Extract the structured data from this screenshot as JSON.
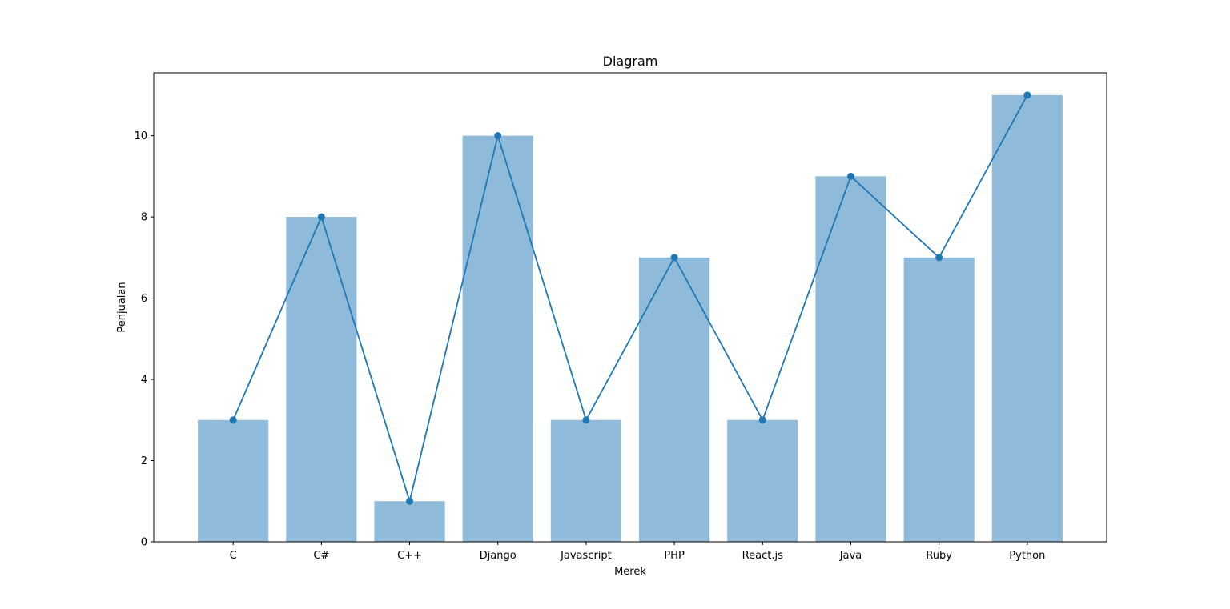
{
  "chart_data": {
    "type": "bar",
    "title": "Diagram",
    "xlabel": "Merek",
    "ylabel": "Penjualan",
    "categories": [
      "C",
      "C#",
      "C++",
      "Django",
      "Javascript",
      "PHP",
      "React.js",
      "Java",
      "Ruby",
      "Python"
    ],
    "values": [
      3,
      8,
      1,
      10,
      3,
      7,
      3,
      9,
      7,
      11
    ],
    "overlay_line": {
      "type": "line",
      "markers": true,
      "values": [
        3,
        8,
        1,
        10,
        3,
        7,
        3,
        9,
        7,
        11
      ]
    },
    "ylim": [
      0,
      11.55
    ],
    "yticks": [
      0,
      2,
      4,
      6,
      8,
      10
    ],
    "grid": false,
    "legend": "none",
    "colors": {
      "bar": "#8fbad9",
      "line": "#1f77b4"
    }
  }
}
